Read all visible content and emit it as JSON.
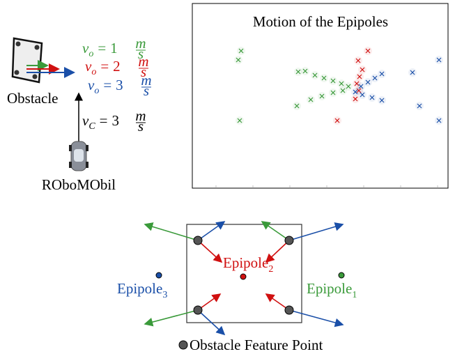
{
  "left_panel": {
    "obstacle_label": "Obstacle",
    "vehicle_label": "RObоMObil",
    "equations": [
      {
        "symbol": "v",
        "subscript": "o",
        "equals": "=",
        "number": "1",
        "unit_numerator": "m",
        "unit_denominator": "s"
      },
      {
        "symbol": "v",
        "subscript": "o",
        "equals": "=",
        "number": "2",
        "unit_numerator": "m",
        "unit_denominator": "s"
      },
      {
        "symbol": "v",
        "subscript": "o",
        "equals": "=",
        "number": "3",
        "unit_numerator": "m",
        "unit_denominator": "s"
      },
      {
        "symbol": "v",
        "subscript": "C",
        "equals": "=",
        "number": "3",
        "unit_numerator": "m",
        "unit_denominator": "s"
      }
    ]
  },
  "plot_panel": {
    "title": "Motion of the Epipoles"
  },
  "bottom_panel": {
    "epipoles": [
      {
        "text": "Epipole",
        "subscript": "1"
      },
      {
        "text": "Epipole",
        "subscript": "2"
      },
      {
        "text": "Epipole",
        "subscript": "3"
      }
    ],
    "legend": "Obstacle Feature Point"
  }
}
